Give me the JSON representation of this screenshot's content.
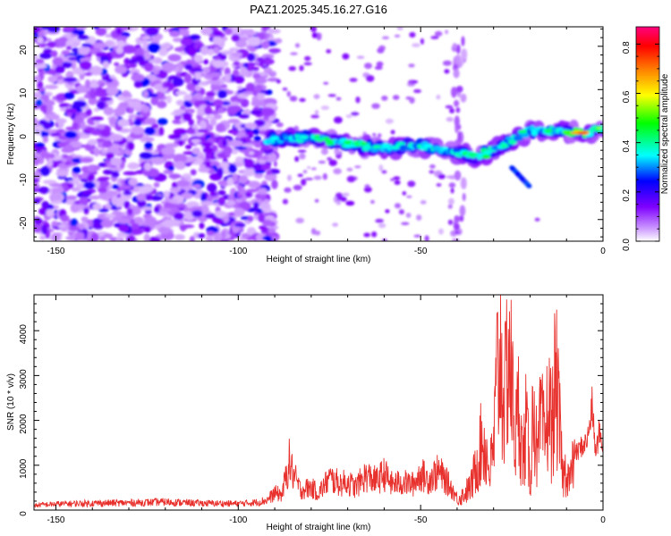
{
  "title": "PAZ1.2025.345.16.27.G16",
  "chart_data": [
    {
      "type": "heatmap",
      "name": "spectrogram",
      "xlabel": "Height of straight line (km)",
      "ylabel": "Frequency (Hz)",
      "xlim": [
        -156,
        0
      ],
      "ylim": [
        -25,
        24.5
      ],
      "xticks": [
        -150,
        -100,
        -50,
        0
      ],
      "xtick_labels": [
        "-150",
        "-100",
        "-50",
        "0"
      ],
      "yticks": [
        -20,
        -10,
        0,
        10,
        20
      ],
      "ytick_labels": [
        "-20",
        "-10",
        "0",
        "10",
        "20"
      ],
      "signal_ridge": [
        {
          "x": -92,
          "y": -1.5
        },
        {
          "x": -80,
          "y": -1.0
        },
        {
          "x": -70,
          "y": -2.5
        },
        {
          "x": -60,
          "y": -3.5
        },
        {
          "x": -50,
          "y": -3.0
        },
        {
          "x": -35,
          "y": -5.5
        },
        {
          "x": -28,
          "y": -3.0
        },
        {
          "x": -20,
          "y": 0.5
        },
        {
          "x": -12,
          "y": 0.5
        },
        {
          "x": -5,
          "y": 0.0
        },
        {
          "x": 0,
          "y": 1.0
        }
      ],
      "branch": [
        {
          "x": -25,
          "y": -8.0
        },
        {
          "x": -20,
          "y": -12.5
        }
      ],
      "peak": {
        "x": -5,
        "y": 0.0,
        "value": 0.85
      },
      "colorbar": {
        "label": "Normalized spectral amplitude",
        "range": [
          0.0,
          0.87
        ],
        "ticks": [
          0.0,
          0.2,
          0.4,
          0.6,
          0.8
        ],
        "tick_labels": [
          "0.0",
          "0.2",
          "0.4",
          "0.6",
          "0.8"
        ],
        "colors": [
          "#ffffff",
          "#cc99ff",
          "#7f00ff",
          "#0000ff",
          "#00ffff",
          "#00ff00",
          "#ffff00",
          "#ff8000",
          "#ff0000",
          "#ff0080"
        ]
      }
    },
    {
      "type": "line",
      "name": "snr",
      "xlabel": "Height of straight line (km)",
      "ylabel": "SNR (10 * v/v)",
      "xlim": [
        -156,
        0
      ],
      "ylim": [
        0,
        4800
      ],
      "xticks": [
        -150,
        -100,
        -50,
        0
      ],
      "xtick_labels": [
        "-150",
        "-100",
        "-50",
        "0"
      ],
      "yticks": [
        0,
        1000,
        2000,
        3000,
        4000
      ],
      "ytick_labels": [
        "0",
        "1000",
        "2000",
        "3000",
        "4000"
      ],
      "color": "#e8302c",
      "series": [
        {
          "name": "SNR",
          "x": [
            -156,
            -150,
            -140,
            -130,
            -120,
            -110,
            -100,
            -95,
            -92,
            -90,
            -88,
            -86,
            -85,
            -83,
            -80,
            -78,
            -75,
            -72,
            -70,
            -68,
            -65,
            -62,
            -60,
            -58,
            -55,
            -52,
            -50,
            -48,
            -45,
            -42,
            -40,
            -38,
            -36,
            -35,
            -33,
            -31,
            -30,
            -29,
            -28,
            -27,
            -26,
            -25,
            -24,
            -23,
            -22,
            -21,
            -20,
            -19,
            -18,
            -17,
            -16,
            -15,
            -14,
            -13,
            -12,
            -11,
            -10,
            -9,
            -8,
            -7,
            -6,
            -5,
            -4,
            -3,
            -2,
            -1,
            0
          ],
          "values": [
            120,
            150,
            170,
            180,
            200,
            170,
            160,
            190,
            250,
            420,
            380,
            1200,
            900,
            500,
            560,
            420,
            780,
            650,
            700,
            560,
            850,
            720,
            900,
            650,
            680,
            640,
            900,
            750,
            950,
            600,
            300,
            450,
            700,
            1150,
            2000,
            1100,
            1700,
            3800,
            4300,
            2800,
            4700,
            3400,
            2000,
            3000,
            1300,
            2500,
            700,
            3300,
            1200,
            2600,
            1800,
            3000,
            2200,
            3700,
            2400,
            900,
            1150,
            800,
            1400,
            1300,
            1450,
            1500,
            1700,
            2400,
            1250,
            1800,
            1500
          ]
        }
      ]
    }
  ]
}
